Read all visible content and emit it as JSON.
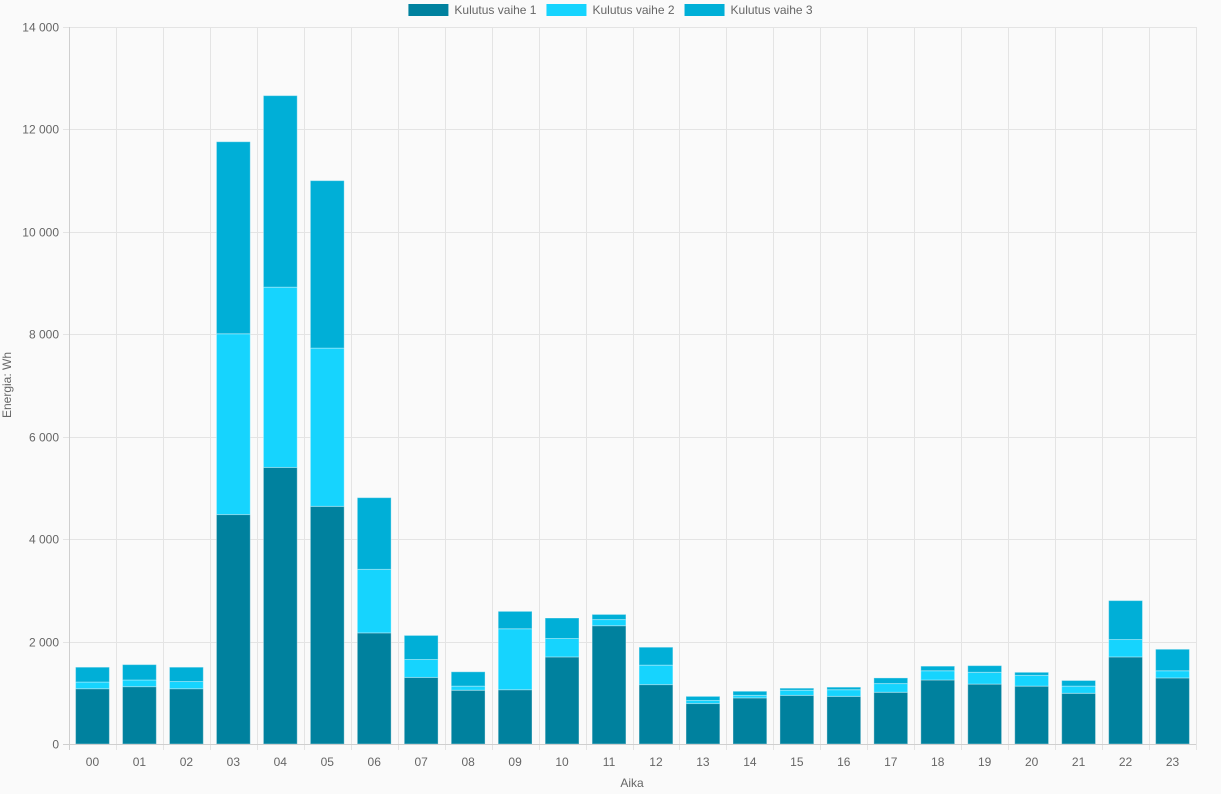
{
  "chart_data": {
    "type": "bar",
    "stacked": true,
    "title": "",
    "xlabel": "Aika",
    "ylabel": "Energia: Wh",
    "ylim": [
      0,
      14000
    ],
    "ytick_step": 2000,
    "grid": true,
    "legend_position": "top",
    "categories": [
      "00",
      "01",
      "02",
      "03",
      "04",
      "05",
      "06",
      "07",
      "08",
      "09",
      "10",
      "11",
      "12",
      "13",
      "14",
      "15",
      "16",
      "17",
      "18",
      "19",
      "20",
      "21",
      "22",
      "23"
    ],
    "series": [
      {
        "name": "Kulutus vaihe 1",
        "color": "#00819e",
        "values": [
          1080,
          1120,
          1080,
          4480,
          5400,
          4640,
          2170,
          1300,
          1050,
          1060,
          1700,
          2310,
          1160,
          790,
          900,
          950,
          930,
          1010,
          1250,
          1170,
          1130,
          990,
          1700,
          1290
        ]
      },
      {
        "name": "Kulutus vaihe 2",
        "color": "#16d4fe",
        "values": [
          130,
          130,
          140,
          3530,
          3520,
          3090,
          1240,
          350,
          80,
          1190,
          360,
          120,
          380,
          60,
          50,
          100,
          130,
          170,
          180,
          230,
          210,
          140,
          340,
          140
        ]
      },
      {
        "name": "Kulutus vaihe 3",
        "color": "#00afd7",
        "values": [
          290,
          300,
          280,
          3750,
          3740,
          3270,
          1400,
          470,
          280,
          340,
          400,
          100,
          350,
          80,
          80,
          40,
          50,
          110,
          90,
          130,
          60,
          110,
          760,
          420
        ]
      }
    ]
  }
}
